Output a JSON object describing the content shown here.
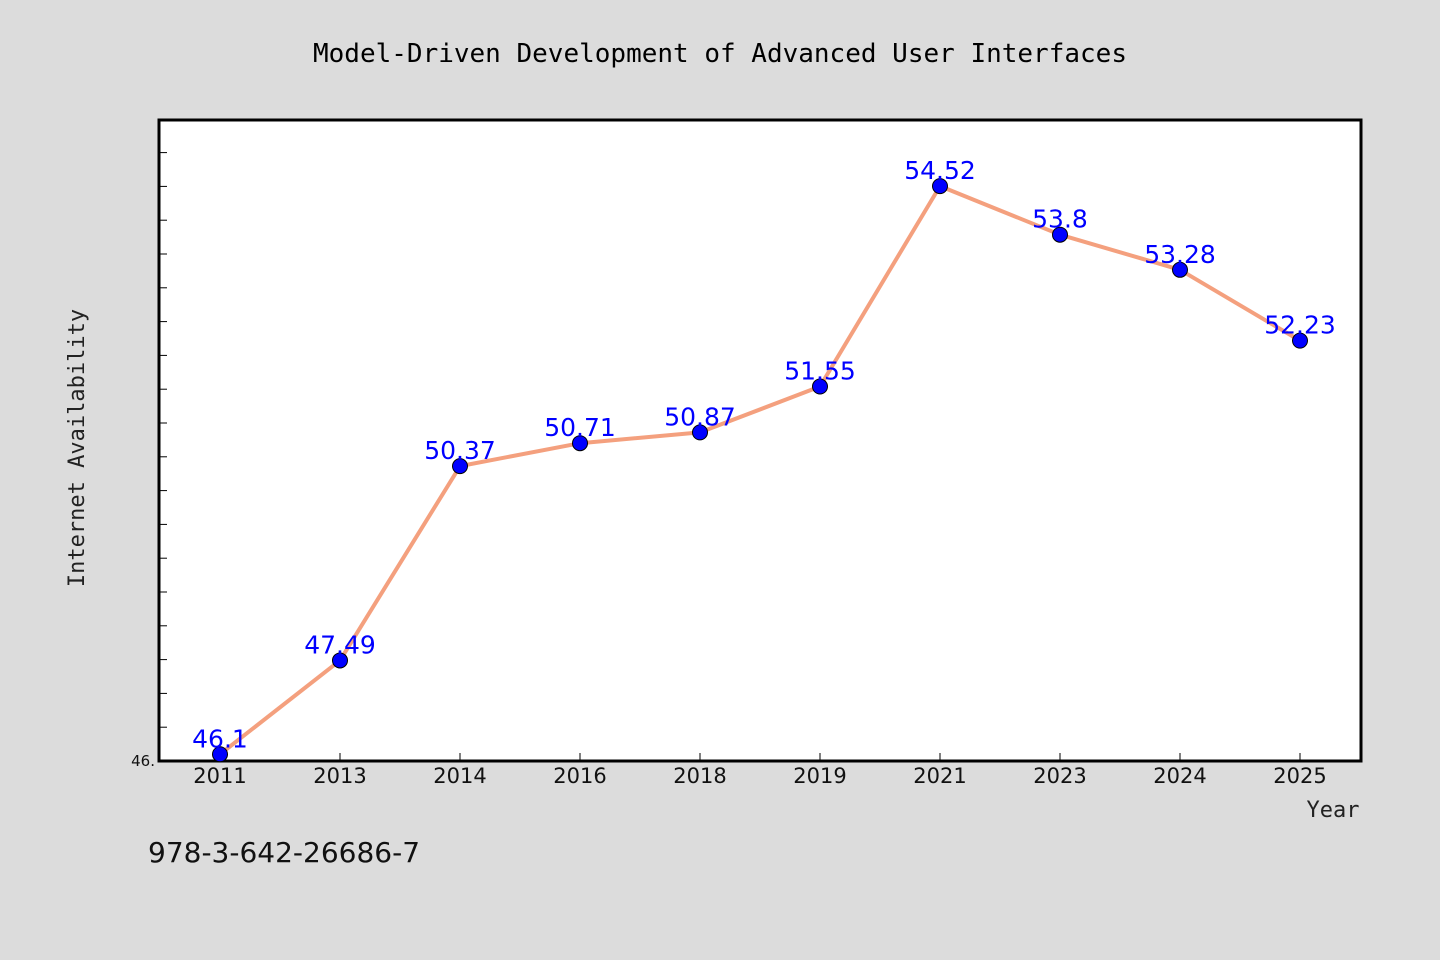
{
  "chart_data": {
    "type": "line",
    "title": "Model-Driven Development of Advanced User Interfaces",
    "xlabel": "Year",
    "ylabel": "Internet Availability",
    "categories": [
      "2011",
      "2013",
      "2014",
      "2016",
      "2018",
      "2019",
      "2021",
      "2023",
      "2024",
      "2025"
    ],
    "series": [
      {
        "values": [
          46.1,
          47.49,
          50.37,
          50.71,
          50.87,
          51.55,
          54.52,
          53.8,
          53.28,
          52.23
        ],
        "labels": [
          "46.1",
          "47.49",
          "50.37",
          "50.71",
          "50.87",
          "51.55",
          "54.52",
          "53.8",
          "53.28",
          "52.23"
        ],
        "line_color": "#f4a07e",
        "marker_color": "#0000ff"
      }
    ],
    "ylim": [
      46.0,
      55.5
    ],
    "ytick_label": "46.",
    "grid": false,
    "legend": false
  },
  "footer": {
    "isbn": "978-3-642-26686-7"
  },
  "colors": {
    "background": "#dcdcdc",
    "plot_area": "#ffffff",
    "axis": "#000000"
  }
}
